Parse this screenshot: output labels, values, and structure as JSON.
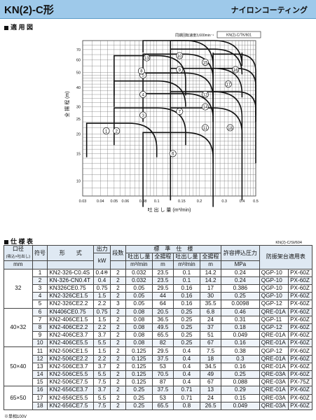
{
  "header": {
    "model": "KN(2)-C形",
    "coating": "ナイロンコーティング"
  },
  "chart_section": {
    "title": "適 用 図"
  },
  "chart_data": {
    "type": "area",
    "speed_note": "同期回転速度3,600min⁻¹",
    "code": "KN(2)-C/TK/601",
    "ylabel": "全 揚 程 (m)",
    "xlabel": "吐 出 し 量 (m³/min)",
    "x_ticks": [
      0.03,
      0.04,
      0.05,
      0.06,
      0.08,
      0.1,
      0.15,
      0.2,
      0.3,
      0.4,
      0.5
    ],
    "x_tick_labels": [
      "0.03",
      "0.04",
      "0.05",
      "0.06",
      "0.08",
      "0.1",
      "0.15",
      "0.2",
      "0.3",
      "0.4",
      "0.5"
    ],
    "y_ticks": [
      10,
      15,
      20,
      25,
      30,
      40,
      50,
      60,
      70
    ],
    "xlim": [
      0.03,
      0.5
    ],
    "ylim": [
      8,
      80
    ],
    "curve_labels": [
      {
        "n": "1",
        "x": 0.044,
        "y": 21
      },
      {
        "n": "2",
        "x": 0.052,
        "y": 21
      },
      {
        "n": "3",
        "x": 0.08,
        "y": 26.5
      },
      {
        "n": "4",
        "x": 0.08,
        "y": 36
      },
      {
        "n": "5",
        "x": 0.08,
        "y": 48
      },
      {
        "n": "6",
        "x": 0.13,
        "y": 15
      },
      {
        "n": "7",
        "x": 0.145,
        "y": 28
      },
      {
        "n": "8",
        "x": 0.078,
        "y": 51
      },
      {
        "n": "9",
        "x": 0.145,
        "y": 52
      },
      {
        "n": "10",
        "x": 0.145,
        "y": 64
      },
      {
        "n": "11",
        "x": 0.22,
        "y": 22
      },
      {
        "n": "12",
        "x": 0.22,
        "y": 36
      },
      {
        "n": "13",
        "x": 0.085,
        "y": 62
      },
      {
        "n": "14",
        "x": 0.22,
        "y": 30
      },
      {
        "n": "15",
        "x": 0.22,
        "y": 58
      },
      {
        "n": "16",
        "x": 0.36,
        "y": 52
      },
      {
        "n": "17",
        "x": 0.32,
        "y": 42
      },
      {
        "n": "18",
        "x": 0.33,
        "y": 22
      }
    ]
  },
  "spec_section": {
    "title": "仕 様 表",
    "code": "KN(2)-C/SI/604"
  },
  "table": {
    "headers": {
      "bore": "口径",
      "bore_sub": "(吸込×吐出し)",
      "bore_unit": "mm",
      "symbol": "符号",
      "model": "形　　式",
      "output": "出力",
      "output_unit": "kW",
      "stages": "段数",
      "std_spec": "標　準　仕　様",
      "flow": "吐出し量",
      "head": "全揚程",
      "flow_unit": "m³/min",
      "head_unit": "m",
      "shutoff": "許容押込圧力",
      "shutoff_unit": "MPa",
      "vib": "防振架台適用表"
    },
    "rows": [
      {
        "size": "",
        "n": "1",
        "model": "KN2-326-C0.4S",
        "kw": "0.4※",
        "st": "2",
        "q1": "0.032",
        "h1": "23.5",
        "q2": "0.1",
        "h2": "14.2",
        "p": "0.24",
        "v1": "QGP-10",
        "v2": "PX-60Z"
      },
      {
        "size": "",
        "n": "2",
        "model": "KN-326-CN0.4T",
        "kw": "0.4",
        "st": "2",
        "q1": "0.032",
        "h1": "23.5",
        "q2": "0.1",
        "h2": "14.2",
        "p": "0.24",
        "v1": "QGP-10",
        "v2": "PX-60Z"
      },
      {
        "size": "32",
        "n": "3",
        "model": "KN326CE0.75",
        "kw": "0.75",
        "st": "2",
        "q1": "0.05",
        "h1": "29.5",
        "q2": "0.16",
        "h2": "17",
        "p": "0.386",
        "v1": "QGP-10",
        "v2": "PX-60Z"
      },
      {
        "size": "",
        "n": "4",
        "model": "KN2-326CE1.5",
        "kw": "1.5",
        "st": "2",
        "q1": "0.05",
        "h1": "44",
        "q2": "0.16",
        "h2": "30",
        "p": "0.25",
        "v1": "QGP-10",
        "v2": "PX-60Z"
      },
      {
        "size": "",
        "n": "5",
        "model": "KN2-326CE2.2",
        "kw": "2.2",
        "st": "3",
        "q1": "0.05",
        "h1": "64",
        "q2": "0.16",
        "h2": "35.5",
        "p": "0.0098",
        "v1": "QGP-12",
        "v2": "PX-60Z"
      },
      {
        "size": "",
        "n": "6",
        "model": "KN406CE0.75",
        "kw": "0.75",
        "st": "2",
        "q1": "0.08",
        "h1": "20.5",
        "q2": "0.25",
        "h2": "6.8",
        "p": "0.46",
        "v1": "QRE-01A",
        "v2": "PX-60Z"
      },
      {
        "size": "",
        "n": "7",
        "model": "KN2-406CE1.5",
        "kw": "1.5",
        "st": "2",
        "q1": "0.08",
        "h1": "36.5",
        "q2": "0.25",
        "h2": "24",
        "p": "0.31",
        "v1": "QGP-11",
        "v2": "PX-60Z"
      },
      {
        "size": "40×32",
        "n": "8",
        "model": "KN2-406CE2.2",
        "kw": "2.2",
        "st": "2",
        "q1": "0.08",
        "h1": "49.5",
        "q2": "0.25",
        "h2": "37",
        "p": "0.18",
        "v1": "QGP-12",
        "v2": "PX-60Z"
      },
      {
        "size": "",
        "n": "9",
        "model": "KN2-406CE3.7",
        "kw": "3.7",
        "st": "2",
        "q1": "0.08",
        "h1": "65.5",
        "q2": "0.25",
        "h2": "51",
        "p": "0.049",
        "v1": "QRE-01A",
        "v2": "PX-60Z"
      },
      {
        "size": "",
        "n": "10",
        "model": "KN2-406CE5.5",
        "kw": "5.5",
        "st": "2",
        "q1": "0.08",
        "h1": "82",
        "q2": "0.25",
        "h2": "67",
        "p": "0.16",
        "v1": "QRE-01A",
        "v2": "PX-60Z"
      },
      {
        "size": "",
        "n": "11",
        "model": "KN2-506CE1.5",
        "kw": "1.5",
        "st": "2",
        "q1": "0.125",
        "h1": "29.5",
        "q2": "0.4",
        "h2": "7.5",
        "p": "0.38",
        "v1": "QGP-12",
        "v2": "PX-60Z"
      },
      {
        "size": "",
        "n": "12",
        "model": "KN2-506CE2.2",
        "kw": "2.2",
        "st": "2",
        "q1": "0.125",
        "h1": "37.5",
        "q2": "0.4",
        "h2": "18",
        "p": "0.3",
        "v1": "QRE-01A",
        "v2": "PX-60Z"
      },
      {
        "size": "50×40",
        "n": "13",
        "model": "KN2-506CE3.7",
        "kw": "3.7",
        "st": "2",
        "q1": "0.125",
        "h1": "53",
        "q2": "0.4",
        "h2": "34.5",
        "p": "0.16",
        "v1": "QRE-01A",
        "v2": "PX-60Z"
      },
      {
        "size": "",
        "n": "14",
        "model": "KN2-506CE5.5",
        "kw": "5.5",
        "st": "2",
        "q1": "0.125",
        "h1": "70.5",
        "q2": "0.4",
        "h2": "49",
        "p": "0.25",
        "v1": "QRE-03A",
        "v2": "PX-60Z"
      },
      {
        "size": "",
        "n": "15",
        "model": "KN2-506CE7.5",
        "kw": "7.5",
        "st": "2",
        "q1": "0.125",
        "h1": "87",
        "q2": "0.4",
        "h2": "67",
        "p": "0.088",
        "v1": "QRE-03A",
        "v2": "PX-75Z"
      },
      {
        "size": "",
        "n": "16",
        "model": "KN2-656CE3.7",
        "kw": "3.7",
        "st": "2",
        "q1": "0.25",
        "h1": "37.5",
        "q2": "0.71",
        "h2": "13",
        "p": "0.29",
        "v1": "QRE-01A",
        "v2": "PX-60Z"
      },
      {
        "size": "65×50",
        "n": "17",
        "model": "KN2-656CE5.5",
        "kw": "5.5",
        "st": "2",
        "q1": "0.25",
        "h1": "53",
        "q2": "0.71",
        "h2": "24",
        "p": "0.15",
        "v1": "QRE-03A",
        "v2": "PX-60Z"
      },
      {
        "size": "",
        "n": "18",
        "model": "KN2-656CE7.5",
        "kw": "7.5",
        "st": "2",
        "q1": "0.25",
        "h1": "65.5",
        "q2": "0.8",
        "h2": "26.5",
        "p": "0.049",
        "v1": "QRE-03A",
        "v2": "PX-60Z"
      }
    ]
  },
  "footnote": "※単相100V"
}
